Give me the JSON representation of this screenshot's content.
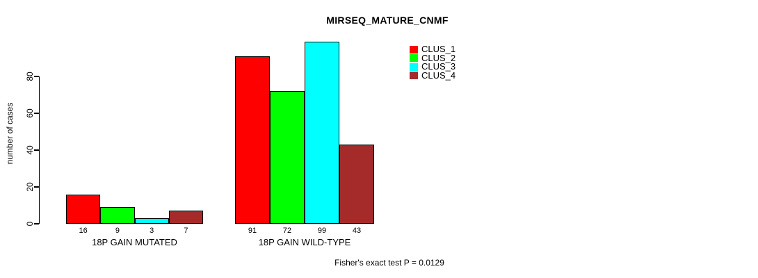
{
  "title": "MIRSEQ_MATURE_CNMF",
  "footer": "Fisher's exact test P = 0.0129",
  "chart_data": {
    "type": "bar",
    "grouped": true,
    "title": "MIRSEQ_MATURE_CNMF",
    "ylabel": "number of cases",
    "xlabel": "",
    "annotation": "Fisher's exact test P = 0.0129",
    "categories": [
      "18P GAIN MUTATED",
      "18P GAIN WILD-TYPE"
    ],
    "series": [
      {
        "name": "CLUS_1",
        "color": "#FF0000",
        "values": [
          16,
          91
        ]
      },
      {
        "name": "CLUS_2",
        "color": "#00FF00",
        "values": [
          9,
          72
        ]
      },
      {
        "name": "CLUS_3",
        "color": "#00FFFF",
        "values": [
          3,
          99
        ]
      },
      {
        "name": "CLUS_4",
        "color": "#A52A2A",
        "values": [
          7,
          43
        ]
      }
    ],
    "bar_value_labels": [
      [
        16,
        9,
        3,
        7
      ],
      [
        91,
        72,
        99,
        43
      ]
    ],
    "yticks": [
      0,
      20,
      40,
      60,
      80
    ],
    "ylim": [
      0,
      99
    ],
    "grid": false,
    "legend_position": "right-top",
    "bar_border_color": "#000000",
    "background_color": "#FFFFFF"
  }
}
